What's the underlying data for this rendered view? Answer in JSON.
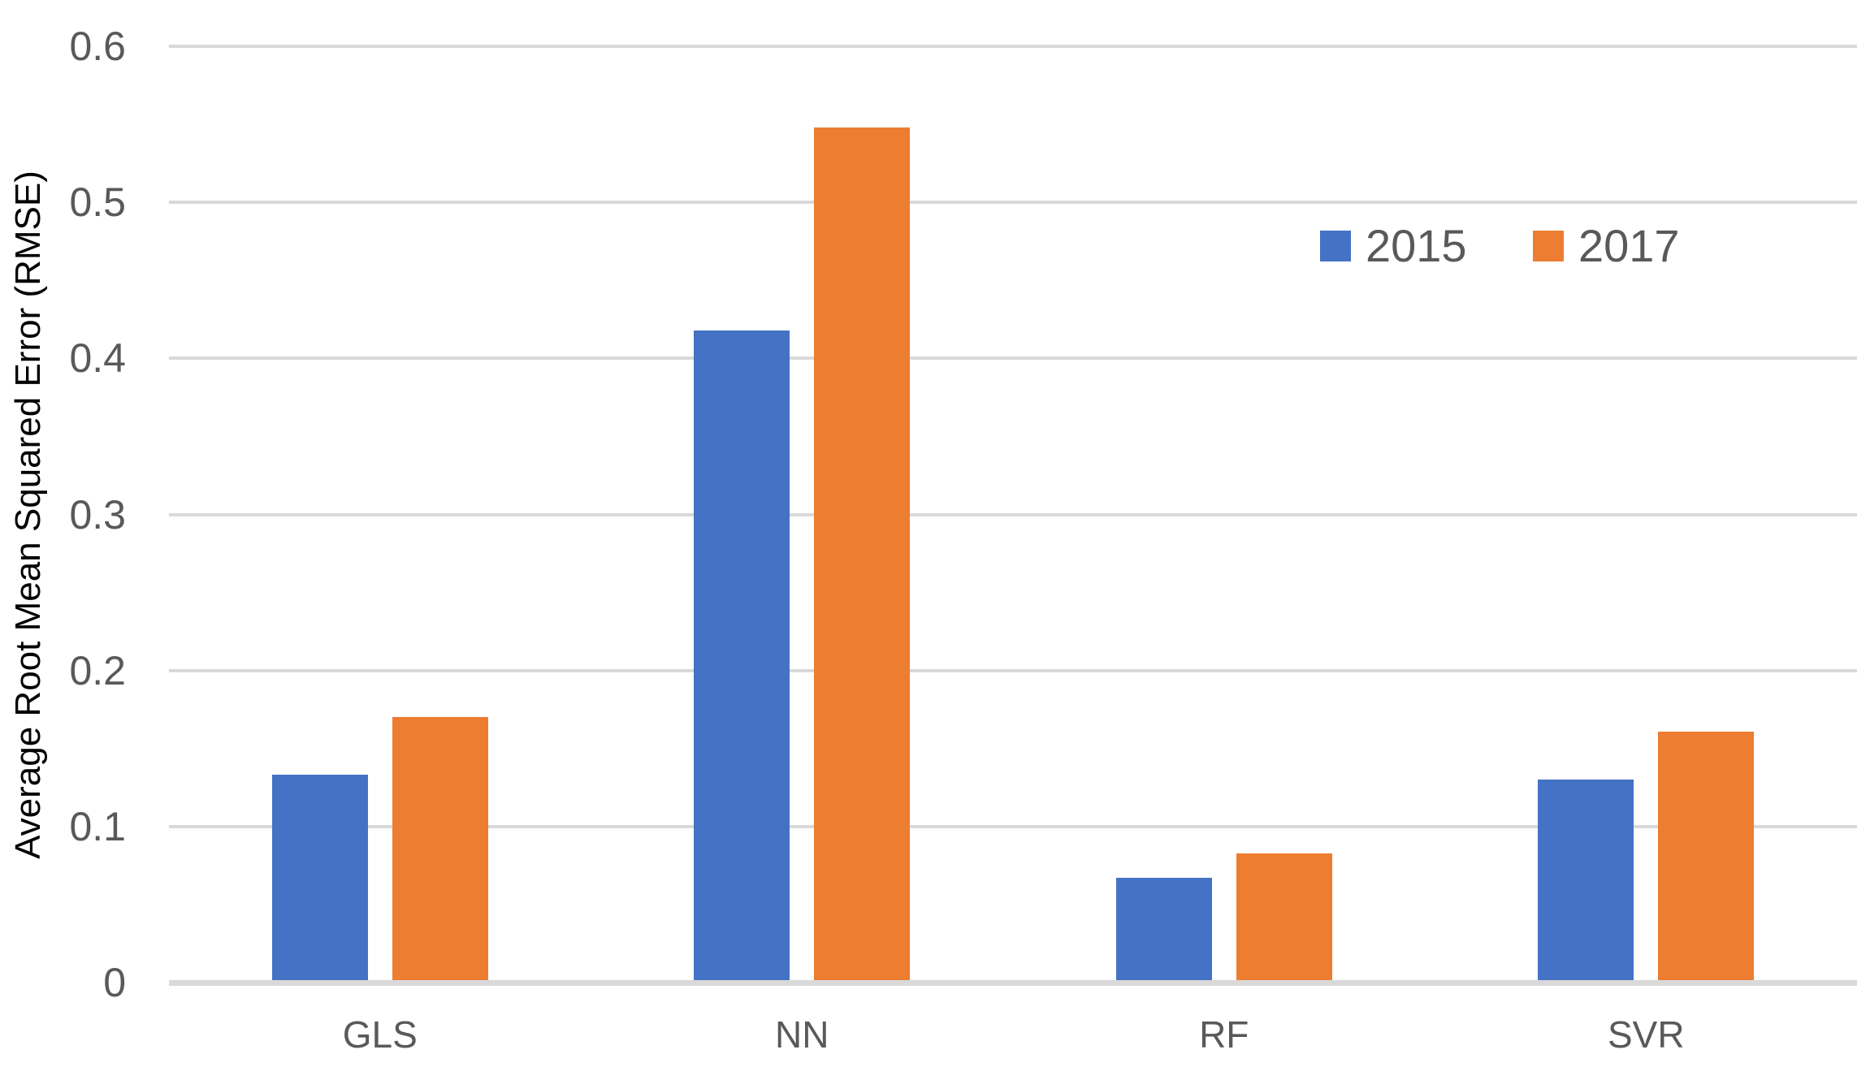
{
  "chart_data": {
    "type": "bar",
    "title": "",
    "ylabel": "Average Root Mean Squared Error (RMSE)",
    "xlabel": "",
    "categories": [
      "GLS",
      "NN",
      "RF",
      "SVR"
    ],
    "series": [
      {
        "name": "2015",
        "color": "#4472C4",
        "values": [
          0.133,
          0.418,
          0.067,
          0.13
        ]
      },
      {
        "name": "2017",
        "color": "#ED7D31",
        "values": [
          0.17,
          0.548,
          0.083,
          0.161
        ]
      }
    ],
    "ylim": [
      0,
      0.6
    ],
    "ytick_step": 0.1,
    "ytick_labels": [
      "0",
      "0.1",
      "0.2",
      "0.3",
      "0.4",
      "0.5",
      "0.6"
    ],
    "grid": true,
    "legend_position": "upper-right",
    "colors": {
      "gridline": "#D9D9D9",
      "axis_line": "#D9D9D9",
      "axis_text": "#595959",
      "y_title_text": "#000000",
      "background": "#FFFFFF"
    }
  }
}
